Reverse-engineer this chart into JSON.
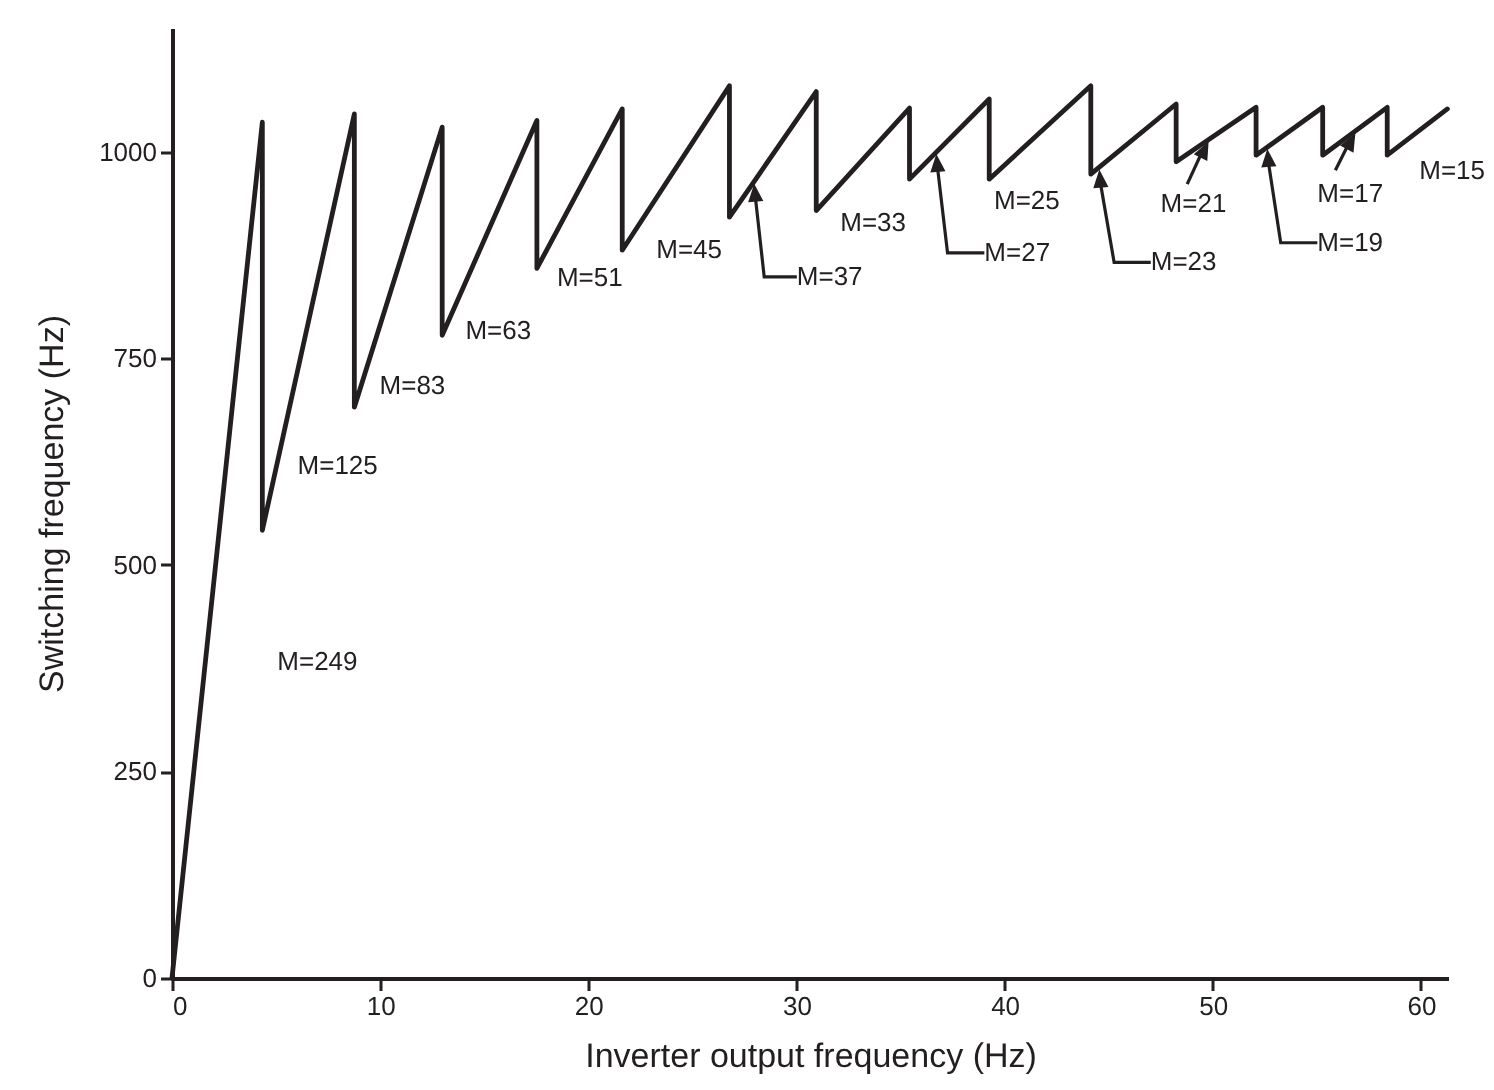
{
  "chart_data": {
    "type": "line",
    "xlabel": "Inverter output frequency (Hz)",
    "ylabel": "Switching frequency (Hz)",
    "x": [
      0,
      4.34,
      4.34,
      8.76,
      8.76,
      12.98,
      12.98,
      17.53,
      17.53,
      21.63,
      21.63,
      26.78,
      26.78,
      30.95,
      30.95,
      35.43,
      35.43,
      39.26,
      39.26,
      44.14,
      44.14,
      48.24,
      48.24,
      52.08,
      52.08,
      55.28,
      55.28,
      58.38,
      58.38,
      61.27
    ],
    "series": [
      {
        "color": "#231f20",
        "values": [
          0,
          1036,
          542,
          1046,
          691,
          1030,
          778,
          1038,
          859,
          1052,
          881,
          1080,
          921,
          1073,
          929,
          1053,
          967,
          1064,
          967,
          1080,
          973,
          1058,
          988,
          1054,
          996,
          1054,
          996,
          1054,
          996,
          1052
        ]
      }
    ],
    "xlim": [
      0,
      61.3
    ],
    "xticks": [
      0,
      10,
      20,
      30,
      40,
      50,
      60
    ],
    "ylim": [
      0,
      1150
    ],
    "yticks": [
      0,
      250,
      500,
      750,
      1000
    ],
    "grid": false,
    "marker": "none",
    "line_style": "solid",
    "annotations": [
      {
        "text": "M=249",
        "x": 1.6,
        "y": 382
      },
      {
        "text": "M=125",
        "x": 4.34,
        "y": 542
      },
      {
        "text": "M=83",
        "x": 8.76,
        "y": 691
      },
      {
        "text": "M=63",
        "x": 12.98,
        "y": 778
      },
      {
        "text": "M=51",
        "x": 17.53,
        "y": 859
      },
      {
        "text": "M=45",
        "x": 21.63,
        "y": 881
      },
      {
        "text": "M=37",
        "x": 27.97,
        "y": 964
      },
      {
        "text": "M=33",
        "x": 30.95,
        "y": 929
      },
      {
        "text": "M=27",
        "x": 36.72,
        "y": 1000
      },
      {
        "text": "M=25",
        "x": 39.26,
        "y": 967
      },
      {
        "text": "M=23",
        "x": 44.55,
        "y": 981
      },
      {
        "text": "M=21",
        "x": 49.8,
        "y": 1015
      },
      {
        "text": "M=19",
        "x": 52.62,
        "y": 1006
      },
      {
        "text": "M=17",
        "x": 56.85,
        "y": 1025
      },
      {
        "text": "M=15",
        "x": 58.38,
        "y": 996
      }
    ]
  }
}
